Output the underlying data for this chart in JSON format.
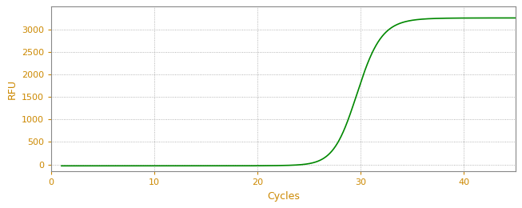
{
  "title": "",
  "xlabel": "Cycles",
  "ylabel": "RFU",
  "xlim": [
    0,
    45
  ],
  "ylim": [
    -150,
    3500
  ],
  "yticks": [
    0,
    500,
    1000,
    1500,
    2000,
    2500,
    3000
  ],
  "xticks": [
    0,
    10,
    20,
    30,
    40
  ],
  "line_color": "#008800",
  "line_width": 1.2,
  "grid_color": "#888888",
  "grid_linestyle": ":",
  "background_color": "#ffffff",
  "sigmoid_L": 3250,
  "sigmoid_k": 0.85,
  "sigmoid_x0": 29.5,
  "x_start": 1,
  "x_end": 45,
  "tick_color": "#cc8800",
  "label_color": "#cc8800",
  "spine_color": "#888888",
  "figsize": [
    6.53,
    2.6
  ],
  "dpi": 100
}
